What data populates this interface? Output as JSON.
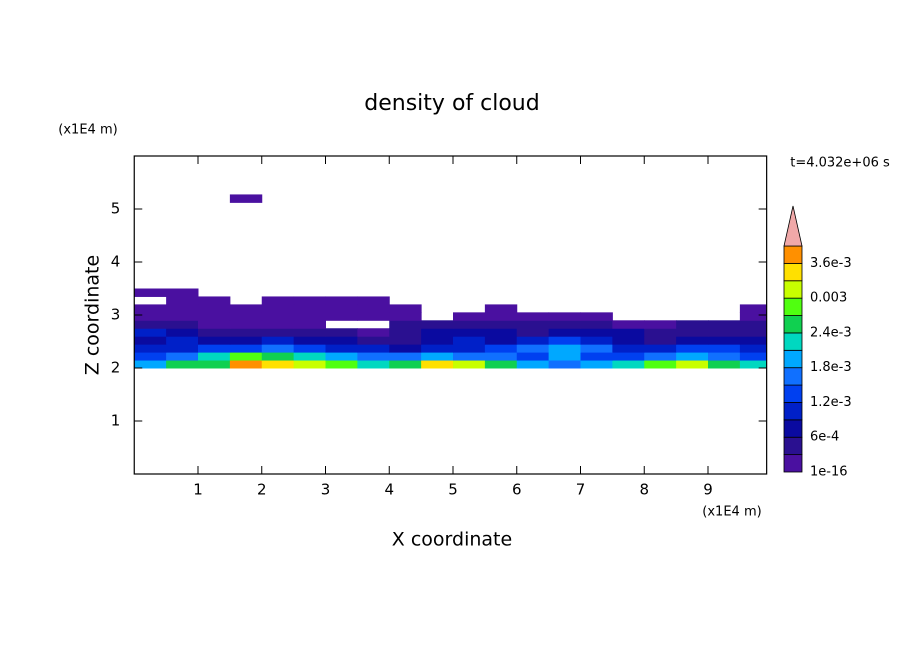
{
  "chart_data": {
    "type": "contour",
    "title": "density of cloud",
    "x_label": "X coordinate",
    "y_label": "Z coordinate",
    "x_unit": "(x1E4 m)",
    "y_unit": "(x1E4 m)",
    "annotation": "t=4.032e+06 s",
    "xlim": [
      0,
      9.92
    ],
    "ylim": [
      0,
      6
    ],
    "xticks": [
      1,
      2,
      3,
      4,
      5,
      6,
      7,
      8,
      9
    ],
    "yticks": [
      1,
      2,
      3,
      4,
      5
    ],
    "levels": [
      1e-16,
      0.0003,
      0.0006,
      0.0009,
      0.0012,
      0.0015,
      0.0018,
      0.0021,
      0.0024,
      0.0027,
      0.003,
      0.0033,
      0.0036,
      0.0039
    ],
    "colors": [
      "#4a10a0",
      "#2a1090",
      "#0a0aa0",
      "#0020c8",
      "#0040f0",
      "#1070ff",
      "#00a8ff",
      "#00d8c0",
      "#10d050",
      "#50ff10",
      "#c8ff00",
      "#ffe000",
      "#ff9000",
      "#f0a8a8"
    ],
    "colorbar_ticks": [
      1e-16,
      {
        "value": 0.0006,
        "label": "6e-4"
      },
      {
        "value": 0.0012,
        "label": "1.2e-3"
      },
      {
        "value": 0.0018,
        "label": "1.8e-3"
      },
      {
        "value": 0.0024,
        "label": "2.4e-3"
      },
      0.003,
      {
        "value": 0.0036,
        "label": "3.6e-3"
      }
    ],
    "x": [
      0.25,
      0.75,
      1.25,
      1.75,
      2.25,
      2.75,
      3.25,
      3.75,
      4.25,
      4.75,
      5.25,
      5.75,
      6.25,
      6.75,
      7.25,
      7.75,
      8.25,
      8.75,
      9.25,
      9.75
    ],
    "z": [
      2.075,
      2.225,
      2.375,
      2.525,
      2.675,
      2.825,
      2.975,
      3.125,
      3.275,
      3.425,
      5.2
    ],
    "values": [
      [
        0.0018,
        0.0024,
        0.0024,
        0.0036,
        0.0033,
        0.003,
        0.0027,
        0.0021,
        0.0024,
        0.0033,
        0.003,
        0.0024,
        0.0018,
        0.0015,
        0.0018,
        0.0021,
        0.0027,
        0.003,
        0.0024,
        0.0021
      ],
      [
        0.0012,
        0.0015,
        0.0021,
        0.0027,
        0.0024,
        0.0021,
        0.0018,
        0.0015,
        0.0015,
        0.0018,
        0.0015,
        0.0015,
        0.0012,
        0.0018,
        0.0012,
        0.0012,
        0.0015,
        0.0018,
        0.0015,
        0.0012
      ],
      [
        0.0009,
        0.0009,
        0.0012,
        0.0012,
        0.0015,
        0.0012,
        0.0009,
        0.0009,
        0.0006,
        0.0009,
        0.0009,
        0.0012,
        0.0015,
        0.0018,
        0.0015,
        0.0009,
        0.0009,
        0.0012,
        0.0012,
        0.0009
      ],
      [
        0.0006,
        0.0009,
        0.0006,
        0.0006,
        0.0009,
        0.0006,
        0.0006,
        0.0003,
        0.0003,
        0.0006,
        0.0009,
        0.0006,
        0.0009,
        0.0012,
        0.0009,
        0.0006,
        0.0003,
        0.0006,
        0.0006,
        0.0006
      ],
      [
        0.0009,
        0.0006,
        0.0003,
        0.0003,
        0.0003,
        0.0003,
        0.0003,
        0.0001,
        0.0003,
        0.0006,
        0.0006,
        0.0006,
        0.0003,
        0.0006,
        0.0006,
        0.0006,
        0.0003,
        0.0003,
        0.0003,
        0.0003
      ],
      [
        0.0003,
        0.0003,
        0.0001,
        0.0001,
        0.0001,
        0.0001,
        null,
        null,
        0.0003,
        0.0003,
        0.0003,
        0.0003,
        0.0003,
        0.0003,
        0.0003,
        0.0001,
        0.0001,
        0.0003,
        0.0003,
        0.0003
      ],
      [
        0.0001,
        0.0001,
        0.0001,
        0.0001,
        0.0001,
        0.0001,
        0.0001,
        0.0001,
        0.0001,
        null,
        0.0001,
        0.0001,
        0.0001,
        0.0001,
        0.0001,
        null,
        null,
        null,
        null,
        0.0001
      ],
      [
        0.0001,
        0.0001,
        0.0001,
        0.0001,
        0.0001,
        0.0001,
        0.0001,
        0.0001,
        0.0001,
        null,
        null,
        0.0001,
        null,
        null,
        null,
        null,
        null,
        null,
        null,
        0.0001
      ],
      [
        null,
        0.0001,
        0.0001,
        null,
        0.0001,
        0.0001,
        0.0001,
        0.0001,
        null,
        null,
        null,
        null,
        null,
        null,
        null,
        null,
        null,
        null,
        null,
        null
      ],
      [
        0.0001,
        0.0001,
        null,
        null,
        null,
        null,
        null,
        null,
        null,
        null,
        null,
        null,
        null,
        null,
        null,
        null,
        null,
        null,
        null,
        null
      ],
      [
        null,
        null,
        null,
        0.0001,
        null,
        null,
        null,
        null,
        null,
        null,
        null,
        null,
        null,
        null,
        null,
        null,
        null,
        null,
        null,
        null
      ]
    ]
  }
}
